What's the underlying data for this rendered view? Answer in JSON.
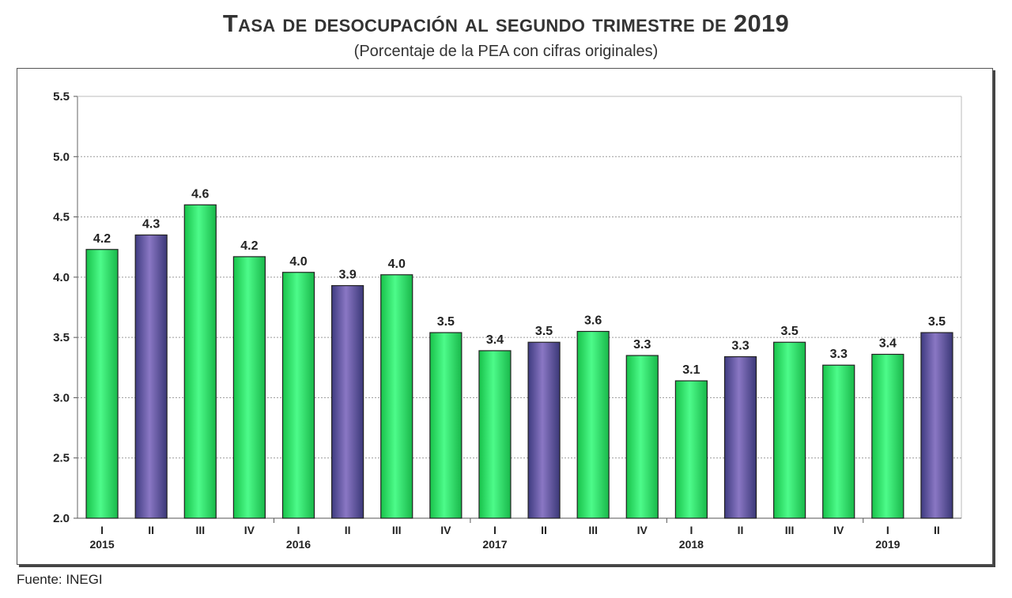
{
  "title": "Tasa de desocupación al segundo trimestre de 2019",
  "subtitle": "(Porcentaje de la PEA con cifras originales)",
  "source": "Fuente: INEGI",
  "colors": {
    "green_bar": "#2ee86a",
    "purple_bar": "#6f5fa8",
    "bar_edge": "#222222"
  },
  "chart_data": {
    "type": "bar",
    "ylim": [
      2.0,
      5.5
    ],
    "yticks": [
      "2.0",
      "2.5",
      "3.0",
      "3.5",
      "4.0",
      "4.5",
      "5.0",
      "5.5"
    ],
    "grid": true,
    "categories": [
      "I",
      "II",
      "III",
      "IV",
      "I",
      "II",
      "III",
      "IV",
      "I",
      "II",
      "III",
      "IV",
      "I",
      "II",
      "III",
      "IV",
      "I",
      "II"
    ],
    "years": [
      "2015",
      "2016",
      "2017",
      "2018",
      "2019"
    ],
    "values": [
      4.23,
      4.35,
      4.6,
      4.17,
      4.04,
      3.93,
      4.02,
      3.54,
      3.39,
      3.46,
      3.55,
      3.35,
      3.14,
      3.34,
      3.46,
      3.27,
      3.36,
      3.54
    ],
    "data_labels": [
      "4.2",
      "4.3",
      "4.6",
      "4.2",
      "4.0",
      "3.9",
      "4.0",
      "3.5",
      "3.4",
      "3.5",
      "3.6",
      "3.3",
      "3.1",
      "3.3",
      "3.5",
      "3.3",
      "3.4",
      "3.5"
    ],
    "highlight": [
      "green",
      "purple",
      "green",
      "green",
      "green",
      "purple",
      "green",
      "green",
      "green",
      "purple",
      "green",
      "green",
      "green",
      "purple",
      "green",
      "green",
      "green",
      "purple"
    ]
  }
}
